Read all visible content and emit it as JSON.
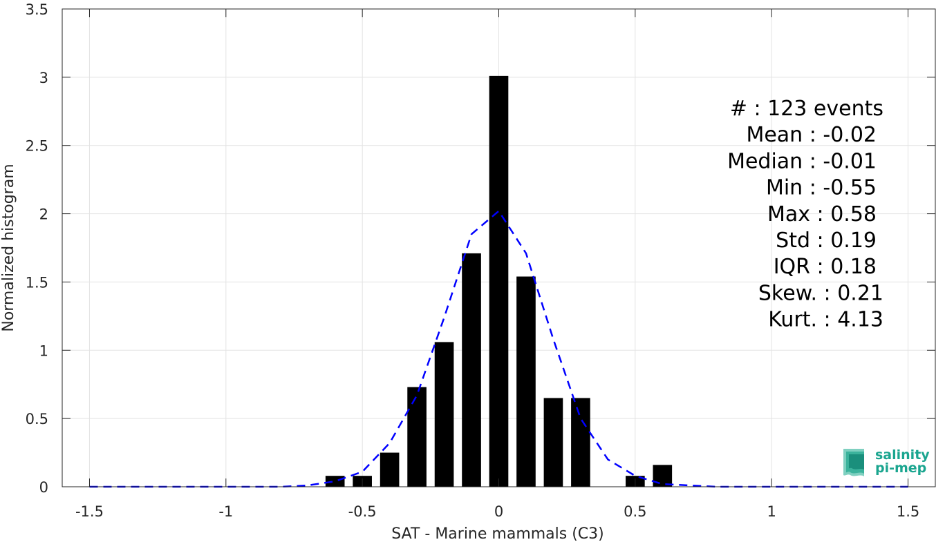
{
  "chart_data": {
    "type": "bar",
    "xlabel": "SAT - Marine mammals (C3)",
    "ylabel": "Normalized histogram",
    "xlim": [
      -1.6,
      1.6
    ],
    "ylim": [
      0,
      3.5
    ],
    "grid": true,
    "x_ticks": [
      -1.5,
      -1,
      -0.5,
      0,
      0.5,
      1,
      1.5
    ],
    "x_tick_labels": [
      "-1.5",
      "-1",
      "-0.5",
      "0",
      "0.5",
      "1",
      "1.5"
    ],
    "y_ticks": [
      0,
      0.5,
      1,
      1.5,
      2,
      2.5,
      3,
      3.5
    ],
    "y_tick_labels": [
      "0",
      "0.5",
      "1",
      "1.5",
      "2",
      "2.5",
      "3",
      "3.5"
    ],
    "bin_width": 0.07,
    "histogram": {
      "centers": [
        -0.6,
        -0.5,
        -0.4,
        -0.3,
        -0.2,
        -0.1,
        0.0,
        0.1,
        0.2,
        0.3,
        0.5,
        0.6
      ],
      "values": [
        0.08,
        0.08,
        0.25,
        0.73,
        1.06,
        1.71,
        3.01,
        1.54,
        0.65,
        0.65,
        0.08,
        0.16
      ],
      "color": "#000000"
    },
    "fit_curve": {
      "style": "dashed",
      "color": "#0000ff",
      "x": [
        -1.5,
        -1.4,
        -1.3,
        -1.2,
        -1.1,
        -1.0,
        -0.9,
        -0.8,
        -0.7,
        -0.6,
        -0.5,
        -0.4,
        -0.3,
        -0.2,
        -0.1,
        0.0,
        0.1,
        0.2,
        0.3,
        0.4,
        0.5,
        0.6,
        0.7,
        0.8,
        0.9,
        1.0,
        1.1,
        1.2,
        1.3,
        1.4,
        1.5
      ],
      "y": [
        0,
        0,
        0,
        0,
        0,
        0,
        0,
        0,
        0.01,
        0.04,
        0.11,
        0.32,
        0.67,
        1.24,
        1.85,
        2.02,
        1.71,
        1.08,
        0.5,
        0.2,
        0.08,
        0.02,
        0.01,
        0,
        0,
        0,
        0,
        0,
        0,
        0,
        0
      ]
    },
    "stats": [
      {
        "label": "#  : 123 events"
      },
      {
        "label": "Mean : -0.02"
      },
      {
        "label": "Median : -0.01"
      },
      {
        "label": "Min : -0.55"
      },
      {
        "label": "Max : 0.58"
      },
      {
        "label": "Std : 0.19"
      },
      {
        "label": "IQR : 0.18"
      },
      {
        "label": "Skew. : 0.21"
      },
      {
        "label": "Kurt. : 4.13"
      }
    ]
  },
  "logo": {
    "line1": "salinity",
    "line2": "pi-mep",
    "color": "#1aa58f"
  }
}
